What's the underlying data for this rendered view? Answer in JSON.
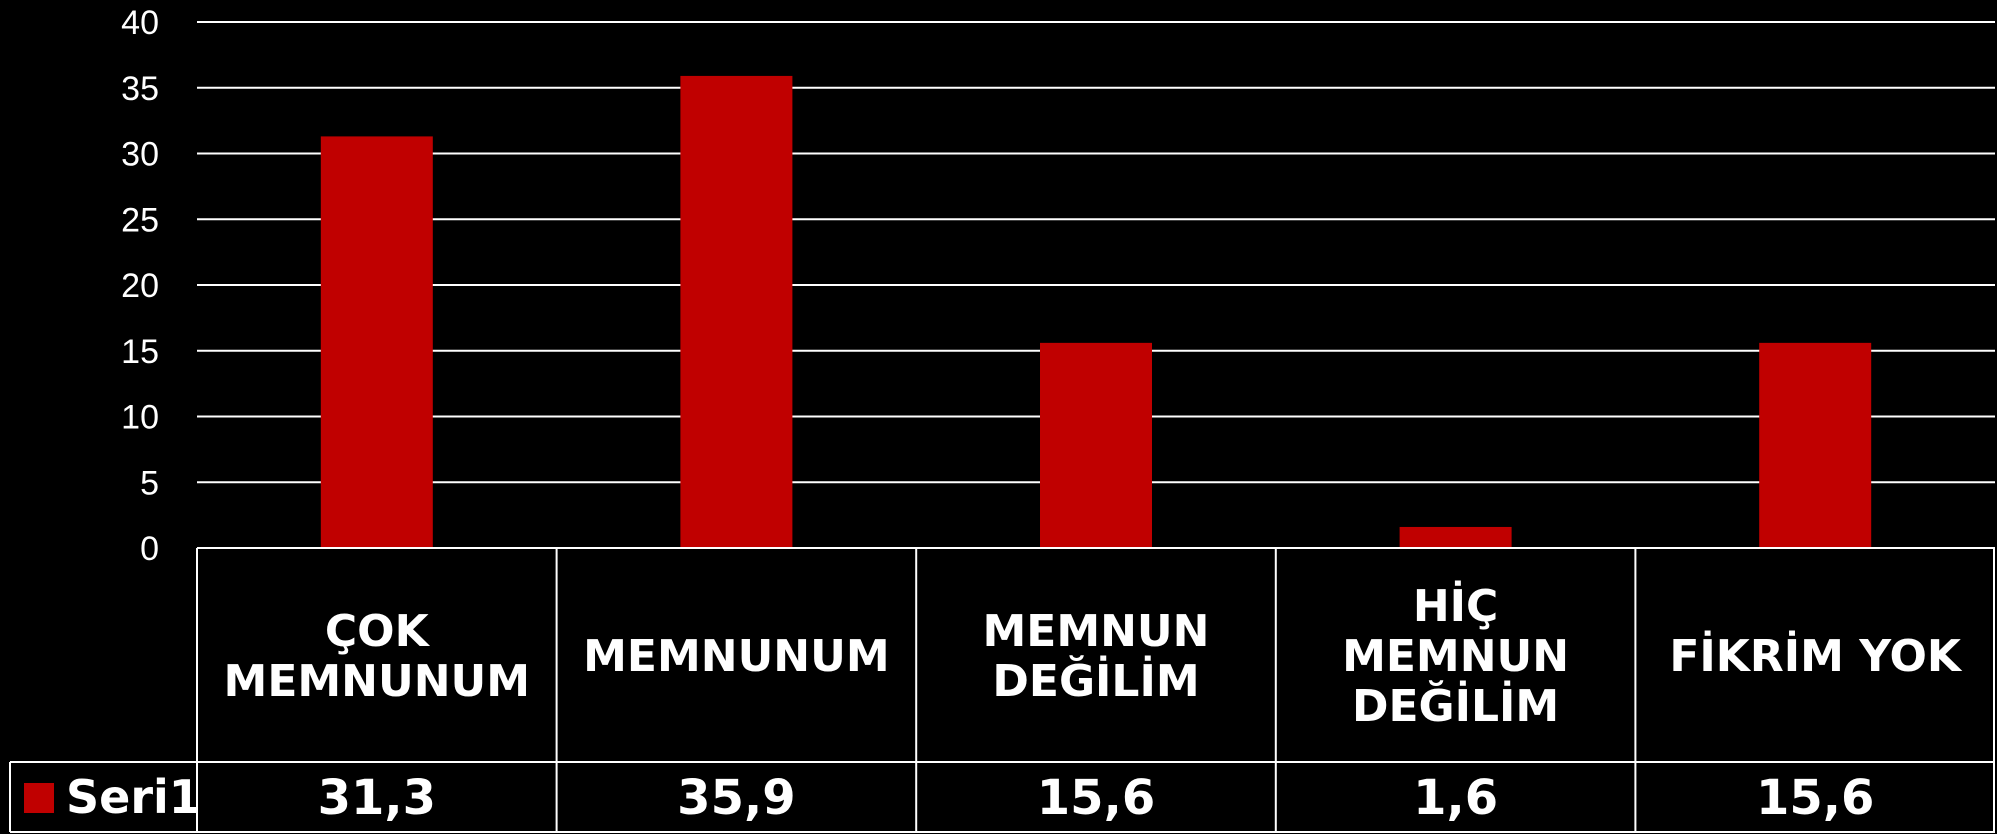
{
  "chart_data": {
    "type": "bar",
    "categories": [
      [
        "ÇOK",
        "MEMNUNUM"
      ],
      [
        "MEMNUNUM"
      ],
      [
        "MEMNUN",
        "DEĞİLİM"
      ],
      [
        "HİÇ",
        "MEMNUN",
        "DEĞİLİM"
      ],
      [
        "FİKRİM YOK"
      ]
    ],
    "series": [
      {
        "name": "Seri1",
        "values": [
          31.3,
          35.9,
          15.6,
          1.6,
          15.6
        ],
        "value_labels": [
          "31,3",
          "35,9",
          "15,6",
          "1,6",
          "15,6"
        ],
        "color": "#c00000"
      }
    ],
    "ylim": [
      0,
      40
    ],
    "yticks": [
      0,
      5,
      10,
      15,
      20,
      25,
      30,
      35,
      40
    ],
    "grid": true,
    "data_table": true,
    "background": "#000000",
    "text_color": "#ffffff",
    "gridline_color": "#ffffff"
  }
}
